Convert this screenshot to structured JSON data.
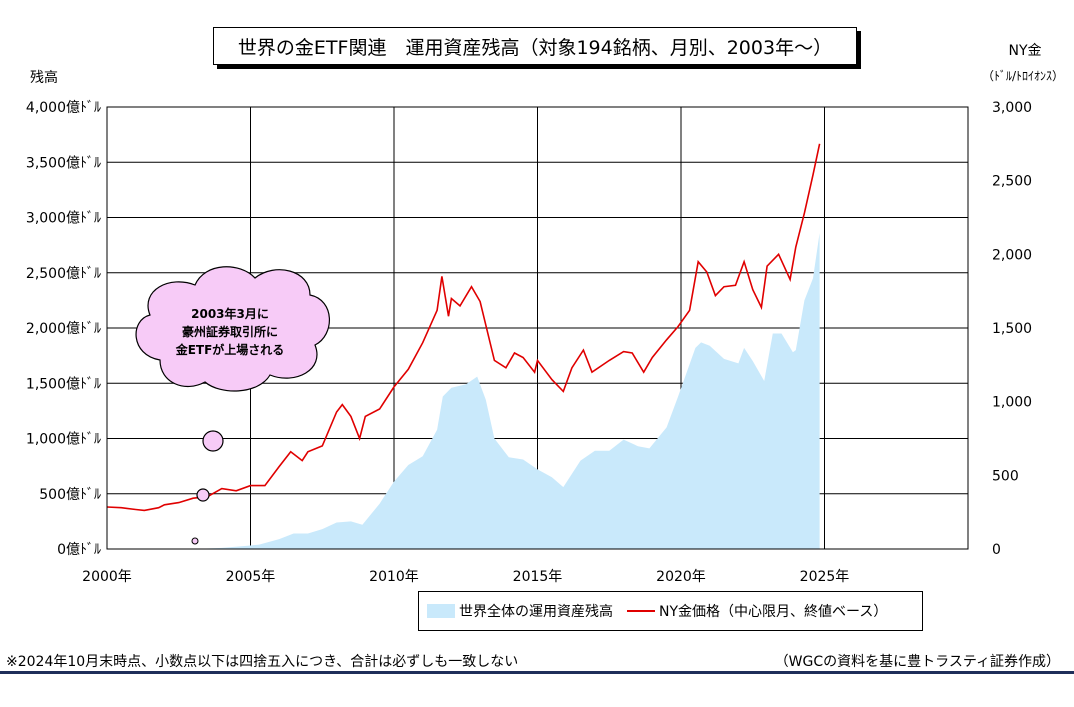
{
  "title": "世界の金ETF関連　運用資産残高（対象194銘柄、月別、2003年～）",
  "left_axis_title": "残高",
  "right_axis_title_line1": "NY金",
  "right_axis_title_line2": "（ﾄﾞﾙ/ﾄﾛｲｵﾝｽ）",
  "callout": [
    "2003年3月に",
    "豪州証券取引所に",
    "金ETFが上場される"
  ],
  "legend": {
    "series1": "世界全体の運用資産残高",
    "series2": "NY金価格（中心限月、終値ベース）"
  },
  "footnote_left": "※2024年10月末時点、小数点以下は四捨五入につき、合計は必ずしも一致しない",
  "footnote_right": "（WGCの資料を基に豊トラスティ証券作成）",
  "colors": {
    "area": "#c9e9fb",
    "line": "#e00000",
    "callout": "#f7cbf7"
  },
  "chart_data": {
    "type": "line",
    "x_range": [
      2000,
      2030
    ],
    "x_ticks": [
      2000,
      2005,
      2010,
      2015,
      2020,
      2025
    ],
    "x_tick_labels": [
      "2000年",
      "2005年",
      "2010年",
      "2015年",
      "2020年",
      "2025年"
    ],
    "y_left_range": [
      0,
      4000
    ],
    "y_left_ticks": [
      0,
      500,
      1000,
      1500,
      2000,
      2500,
      3000,
      3500,
      4000
    ],
    "y_left_tick_labels": [
      "0億ﾄﾞﾙ",
      "500億ﾄﾞﾙ",
      "1,000億ﾄﾞﾙ",
      "1,500億ﾄﾞﾙ",
      "2,000億ﾄﾞﾙ",
      "2,500億ﾄﾞﾙ",
      "3,000億ﾄﾞﾙ",
      "3,500億ﾄﾞﾙ",
      "4,000億ﾄﾞﾙ"
    ],
    "y_right_range": [
      0,
      3000
    ],
    "y_right_ticks": [
      0,
      500,
      1000,
      1500,
      2000,
      2500,
      3000
    ],
    "y_right_tick_labels": [
      "0",
      "500",
      "1,000",
      "1,500",
      "2,000",
      "2,500",
      "3,000"
    ],
    "grid": true,
    "legend_position": "bottom",
    "series": [
      {
        "name": "世界全体の運用資産残高",
        "type": "area",
        "axis": "left",
        "x": [
          2003.25,
          2004.0,
          2004.9,
          2005.3,
          2006.0,
          2006.5,
          2007.0,
          2007.5,
          2008.0,
          2008.5,
          2008.9,
          2009.5,
          2010.0,
          2010.5,
          2011.0,
          2011.5,
          2011.7,
          2012.0,
          2012.5,
          2012.9,
          2013.2,
          2013.5,
          2014.0,
          2014.5,
          2015.0,
          2015.5,
          2015.9,
          2016.5,
          2017.0,
          2017.5,
          2018.0,
          2018.5,
          2018.9,
          2019.5,
          2019.9,
          2020.5,
          2020.7,
          2021.0,
          2021.5,
          2022.0,
          2022.2,
          2022.5,
          2022.9,
          2023.2,
          2023.5,
          2023.9,
          2024.0,
          2024.3,
          2024.6,
          2024.83
        ],
        "values": [
          3,
          10,
          30,
          40,
          90,
          140,
          140,
          180,
          240,
          250,
          220,
          410,
          610,
          760,
          840,
          1080,
          1380,
          1460,
          1490,
          1560,
          1350,
          1000,
          830,
          810,
          720,
          650,
          560,
          800,
          890,
          890,
          990,
          930,
          910,
          1100,
          1380,
          1820,
          1870,
          1840,
          1720,
          1680,
          1820,
          1700,
          1520,
          1950,
          1950,
          1780,
          1800,
          2250,
          2450,
          2860
        ]
      },
      {
        "name": "NY金価格（中心限月、終値ベース）",
        "type": "line",
        "axis": "right",
        "x": [
          2000.0,
          2000.5,
          2001.0,
          2001.3,
          2001.8,
          2002.0,
          2002.5,
          2003.0,
          2003.5,
          2004.0,
          2004.5,
          2005.0,
          2005.5,
          2006.0,
          2006.4,
          2006.8,
          2007.0,
          2007.5,
          2008.0,
          2008.2,
          2008.5,
          2008.8,
          2009.0,
          2009.5,
          2010.0,
          2010.5,
          2011.0,
          2011.5,
          2011.67,
          2011.9,
          2012.0,
          2012.3,
          2012.7,
          2013.0,
          2013.5,
          2013.9,
          2014.2,
          2014.5,
          2014.9,
          2015.0,
          2015.5,
          2015.9,
          2016.2,
          2016.6,
          2016.9,
          2017.5,
          2018.0,
          2018.3,
          2018.7,
          2019.0,
          2019.5,
          2019.9,
          2020.3,
          2020.6,
          2020.9,
          2021.2,
          2021.5,
          2021.9,
          2022.2,
          2022.5,
          2022.8,
          2023.0,
          2023.4,
          2023.8,
          2024.0,
          2024.3,
          2024.6,
          2024.83
        ],
        "values": [
          285,
          280,
          268,
          262,
          280,
          300,
          315,
          345,
          355,
          410,
          395,
          430,
          430,
          560,
          660,
          600,
          660,
          700,
          930,
          980,
          900,
          750,
          900,
          950,
          1100,
          1220,
          1400,
          1620,
          1850,
          1580,
          1700,
          1650,
          1780,
          1680,
          1280,
          1230,
          1330,
          1300,
          1200,
          1280,
          1150,
          1070,
          1230,
          1350,
          1200,
          1280,
          1340,
          1330,
          1200,
          1300,
          1420,
          1510,
          1620,
          1950,
          1880,
          1720,
          1780,
          1790,
          1950,
          1760,
          1640,
          1920,
          2000,
          1830,
          2050,
          2280,
          2540,
          2750
        ]
      }
    ]
  }
}
